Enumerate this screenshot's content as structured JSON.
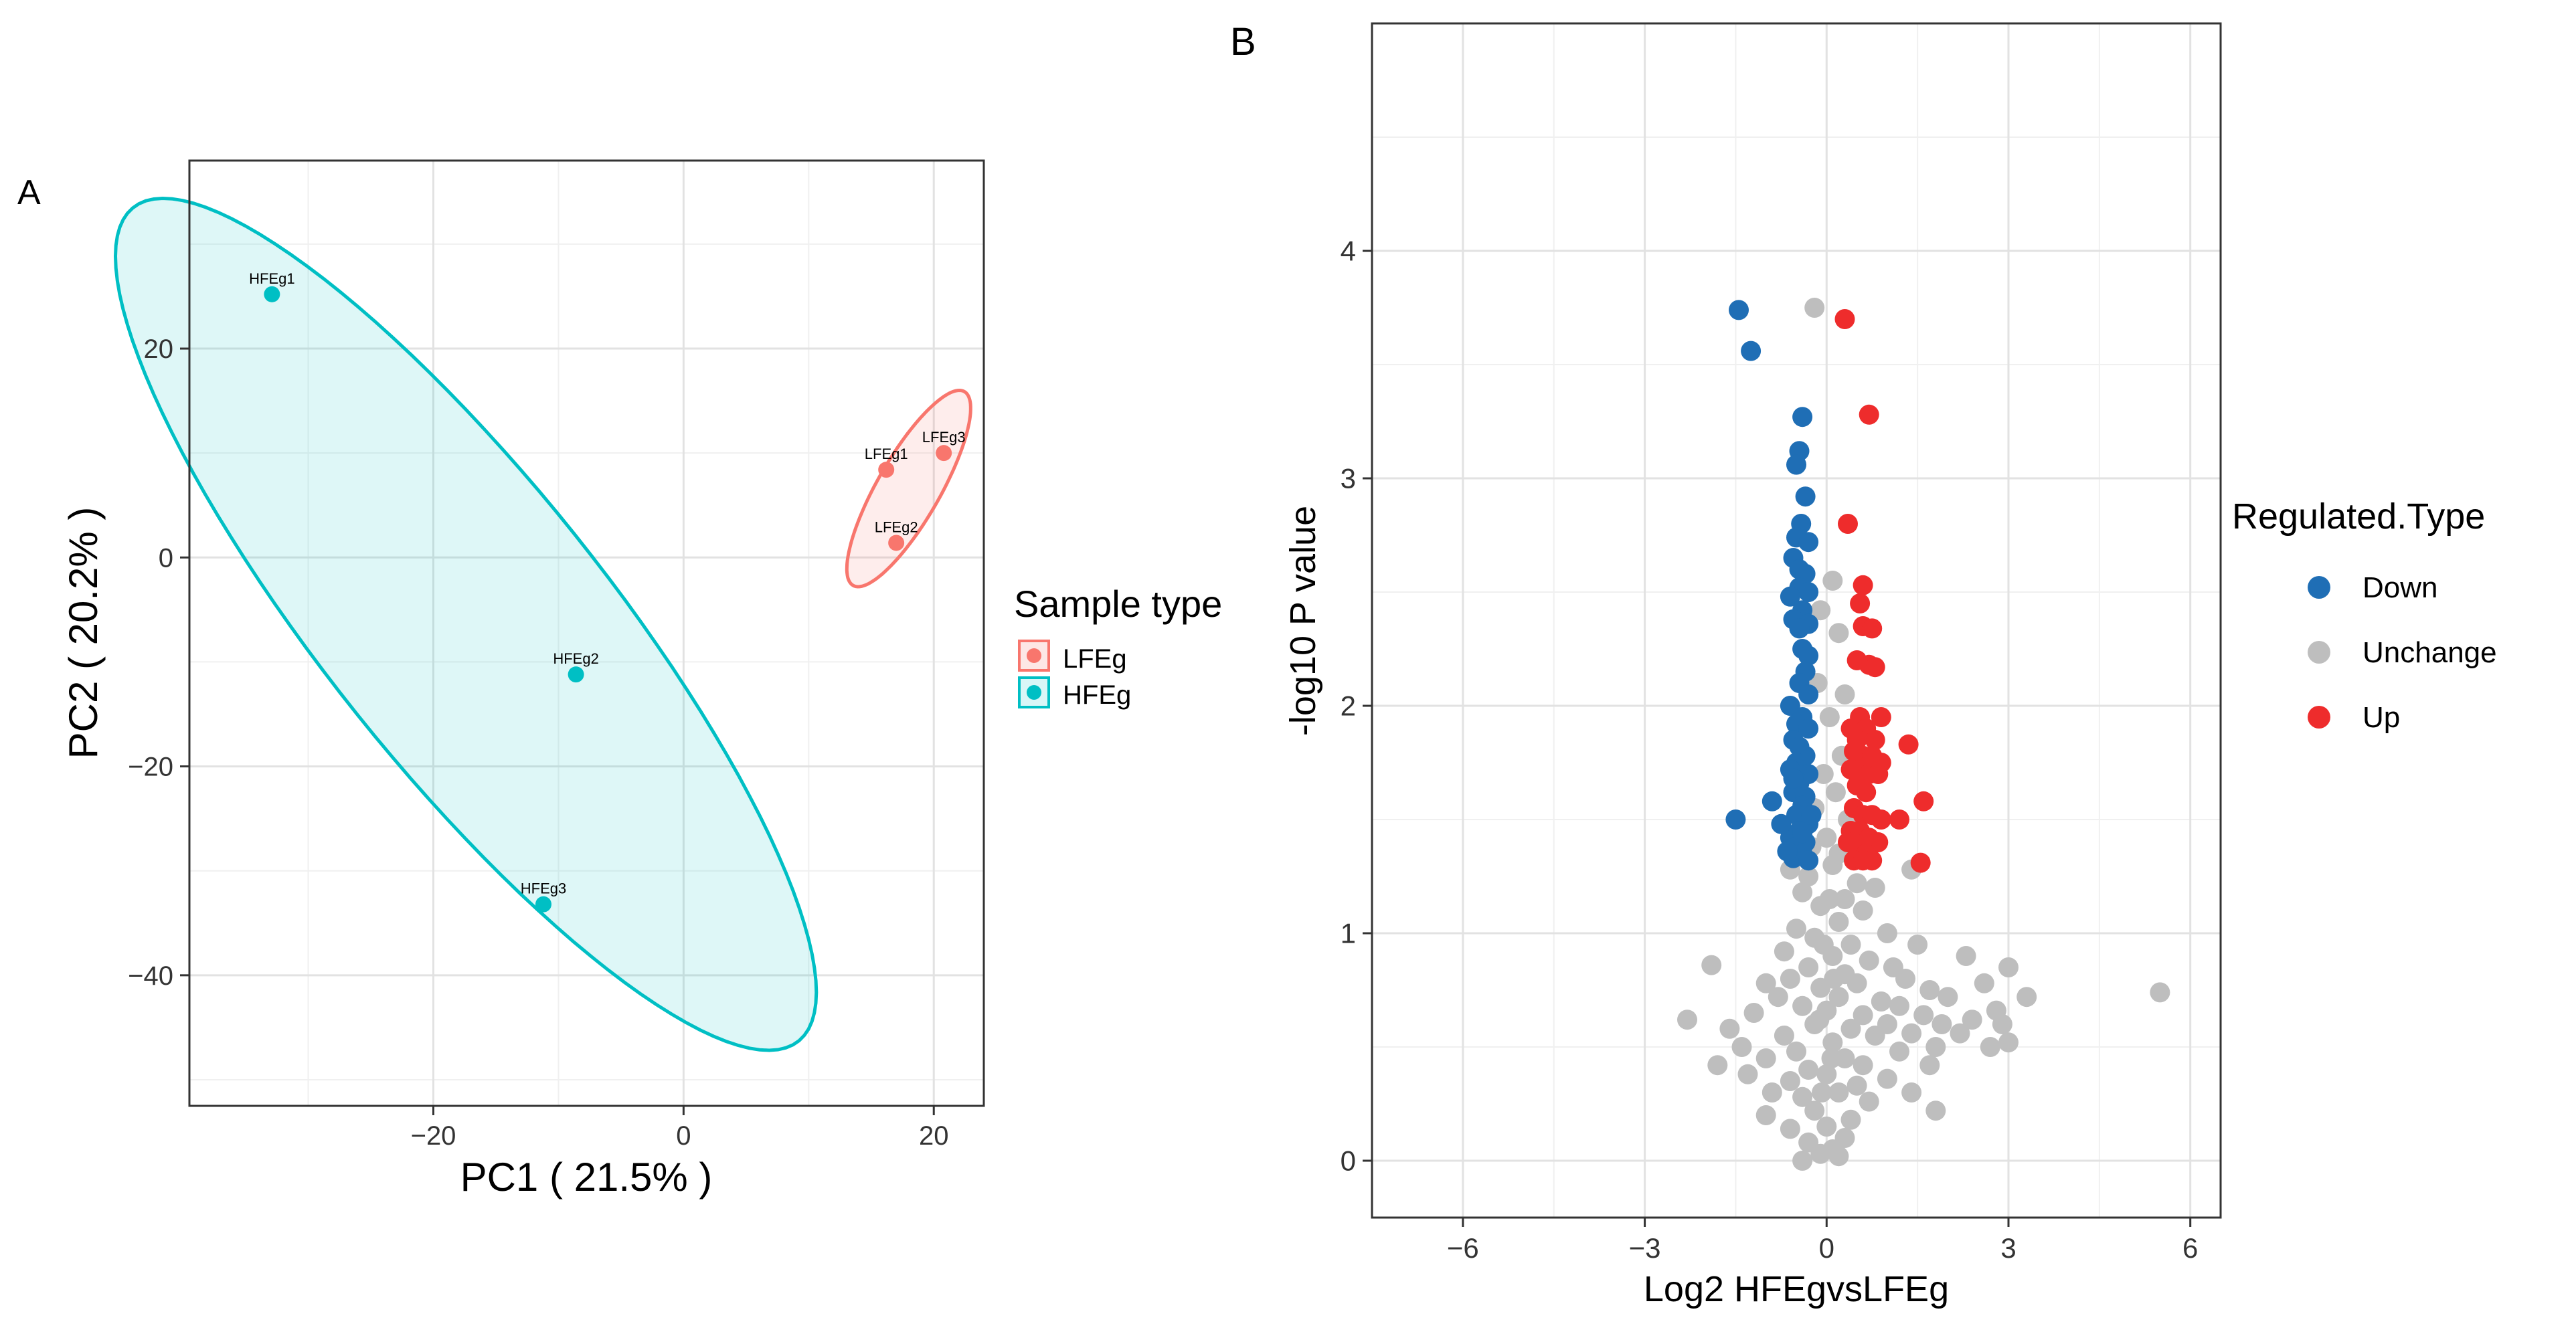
{
  "panel_a": {
    "label": "A",
    "legend": {
      "title": "Sample type",
      "entries": [
        {
          "label": "LFEg",
          "color": "#F8766D"
        },
        {
          "label": "HFEg",
          "color": "#00BFC4"
        }
      ]
    }
  },
  "panel_b": {
    "label": "B",
    "legend": {
      "title": "Regulated.Type",
      "entries": [
        {
          "label": "Down",
          "color": "#1F6EB5"
        },
        {
          "label": "Unchange",
          "color": "#BEBEBE"
        },
        {
          "label": "Up",
          "color": "#EE2C2C"
        }
      ]
    }
  },
  "chart_data": [
    {
      "type": "scatter",
      "title": "",
      "xlabel": "PC1 ( 21.5% )",
      "ylabel": "PC2 ( 20.2% )",
      "xlim": [
        -39.5,
        24
      ],
      "ylim": [
        -52.5,
        38
      ],
      "xticks": [
        -20,
        0,
        20
      ],
      "yticks": [
        -40,
        -20,
        0,
        20
      ],
      "grid": true,
      "series": [
        {
          "name": "LFEg",
          "color": "#F8766D",
          "points": [
            {
              "label": "LFEg1",
              "x": 16.2,
              "y": 8.4
            },
            {
              "label": "LFEg2",
              "x": 17.0,
              "y": 1.4
            },
            {
              "label": "LFEg3",
              "x": 20.8,
              "y": 10.0
            }
          ],
          "ellipse": {
            "cx": 18.0,
            "cy": 6.6,
            "semi_major": 10.3,
            "semi_minor": 2.6,
            "angle_deg": 65
          }
        },
        {
          "name": "HFEg",
          "color": "#00BFC4",
          "points": [
            {
              "label": "HFEg1",
              "x": -32.9,
              "y": 25.2
            },
            {
              "label": "HFEg2",
              "x": -8.6,
              "y": -11.2
            },
            {
              "label": "HFEg3",
              "x": -11.2,
              "y": -33.2
            }
          ],
          "ellipse": {
            "cx": -17.4,
            "cy": -6.4,
            "semi_major": 48.0,
            "semi_minor": 12.0,
            "angle_deg": -57
          }
        }
      ]
    },
    {
      "type": "scatter",
      "title": "",
      "xlabel": "Log2 HFEgvsLFEg",
      "ylabel": "-log10 P value",
      "xlim": [
        -7.5,
        6.5
      ],
      "ylim": [
        -0.25,
        5.0
      ],
      "xticks": [
        -6,
        -3,
        0,
        3,
        6
      ],
      "yticks": [
        0,
        1,
        2,
        3,
        4
      ],
      "grid": true,
      "series": [
        {
          "name": "Down",
          "color": "#1F6EB5",
          "points": [
            [
              -1.45,
              3.74
            ],
            [
              -1.25,
              3.56
            ],
            [
              -0.4,
              3.27
            ],
            [
              -0.45,
              3.12
            ],
            [
              -0.5,
              3.06
            ],
            [
              -0.35,
              2.92
            ],
            [
              -0.42,
              2.8
            ],
            [
              -0.5,
              2.74
            ],
            [
              -0.3,
              2.72
            ],
            [
              -0.55,
              2.65
            ],
            [
              -0.45,
              2.6
            ],
            [
              -0.35,
              2.58
            ],
            [
              -0.45,
              2.52
            ],
            [
              -0.3,
              2.5
            ],
            [
              -0.6,
              2.48
            ],
            [
              -0.4,
              2.42
            ],
            [
              -0.55,
              2.38
            ],
            [
              -0.3,
              2.36
            ],
            [
              -0.45,
              2.34
            ],
            [
              -0.4,
              2.25
            ],
            [
              -0.3,
              2.22
            ],
            [
              -0.35,
              2.15
            ],
            [
              -0.45,
              2.1
            ],
            [
              -0.3,
              2.05
            ],
            [
              -0.6,
              2.0
            ],
            [
              -0.4,
              1.95
            ],
            [
              -0.5,
              1.92
            ],
            [
              -0.3,
              1.9
            ],
            [
              -0.55,
              1.85
            ],
            [
              -0.45,
              1.82
            ],
            [
              -0.35,
              1.78
            ],
            [
              -0.5,
              1.75
            ],
            [
              -0.6,
              1.72
            ],
            [
              -0.3,
              1.7
            ],
            [
              -0.45,
              1.66
            ],
            [
              -0.55,
              1.62
            ],
            [
              -0.35,
              1.6
            ],
            [
              -0.9,
              1.58
            ],
            [
              -0.4,
              1.56
            ],
            [
              -0.5,
              1.52
            ],
            [
              -1.5,
              1.5
            ],
            [
              -0.3,
              1.48
            ],
            [
              -0.45,
              1.45
            ],
            [
              -0.6,
              1.42
            ],
            [
              -0.35,
              1.4
            ],
            [
              -0.5,
              1.38
            ],
            [
              -0.4,
              1.35
            ],
            [
              -0.55,
              1.33
            ],
            [
              -0.3,
              1.32
            ],
            [
              -0.65,
              1.36
            ],
            [
              -0.75,
              1.48
            ],
            [
              -0.4,
              1.44
            ],
            [
              -0.25,
              1.52
            ],
            [
              -0.55,
              1.68
            ]
          ]
        },
        {
          "name": "Up",
          "color": "#EE2C2C",
          "points": [
            [
              0.3,
              3.7
            ],
            [
              0.7,
              3.28
            ],
            [
              0.35,
              2.8
            ],
            [
              0.6,
              2.53
            ],
            [
              0.55,
              2.45
            ],
            [
              0.6,
              2.35
            ],
            [
              0.75,
              2.34
            ],
            [
              0.5,
              2.2
            ],
            [
              0.7,
              2.18
            ],
            [
              0.8,
              2.17
            ],
            [
              0.55,
              1.95
            ],
            [
              0.9,
              1.95
            ],
            [
              0.4,
              1.9
            ],
            [
              0.65,
              1.9
            ],
            [
              0.5,
              1.85
            ],
            [
              0.8,
              1.85
            ],
            [
              1.35,
              1.83
            ],
            [
              0.45,
              1.8
            ],
            [
              0.6,
              1.78
            ],
            [
              0.75,
              1.78
            ],
            [
              0.9,
              1.75
            ],
            [
              0.4,
              1.72
            ],
            [
              0.55,
              1.72
            ],
            [
              0.7,
              1.7
            ],
            [
              0.85,
              1.7
            ],
            [
              0.5,
              1.65
            ],
            [
              0.65,
              1.62
            ],
            [
              1.6,
              1.58
            ],
            [
              0.45,
              1.55
            ],
            [
              0.6,
              1.52
            ],
            [
              0.75,
              1.52
            ],
            [
              0.9,
              1.5
            ],
            [
              1.2,
              1.5
            ],
            [
              0.4,
              1.45
            ],
            [
              0.55,
              1.45
            ],
            [
              0.7,
              1.42
            ],
            [
              0.85,
              1.4
            ],
            [
              0.5,
              1.38
            ],
            [
              0.65,
              1.35
            ],
            [
              0.45,
              1.32
            ],
            [
              0.75,
              1.32
            ],
            [
              1.55,
              1.31
            ],
            [
              0.6,
              1.32
            ],
            [
              0.35,
              1.4
            ]
          ]
        },
        {
          "name": "Unchange",
          "color": "#BEBEBE",
          "points": [
            [
              -0.2,
              3.75
            ],
            [
              0.1,
              2.55
            ],
            [
              0.2,
              2.32
            ],
            [
              -0.1,
              2.42
            ],
            [
              0.3,
              2.05
            ],
            [
              -0.15,
              2.1
            ],
            [
              0.05,
              1.95
            ],
            [
              0.25,
              1.78
            ],
            [
              -0.05,
              1.7
            ],
            [
              0.15,
              1.62
            ],
            [
              -0.2,
              1.55
            ],
            [
              0.35,
              1.5
            ],
            [
              0.0,
              1.42
            ],
            [
              -0.25,
              1.38
            ],
            [
              0.2,
              1.35
            ],
            [
              1.4,
              1.28
            ],
            [
              -0.6,
              1.28
            ],
            [
              0.1,
              1.3
            ],
            [
              -0.3,
              1.25
            ],
            [
              0.5,
              1.22
            ],
            [
              0.8,
              1.2
            ],
            [
              -0.4,
              1.18
            ],
            [
              0.3,
              1.15
            ],
            [
              -0.1,
              1.12
            ],
            [
              0.6,
              1.1
            ],
            [
              0.2,
              1.05
            ],
            [
              -0.5,
              1.02
            ],
            [
              1.0,
              1.0
            ],
            [
              -0.2,
              0.98
            ],
            [
              0.4,
              0.95
            ],
            [
              1.5,
              0.95
            ],
            [
              -0.7,
              0.92
            ],
            [
              0.1,
              0.9
            ],
            [
              0.7,
              0.88
            ],
            [
              -0.3,
              0.85
            ],
            [
              1.1,
              0.85
            ],
            [
              2.3,
              0.9
            ],
            [
              -1.9,
              0.86
            ],
            [
              0.3,
              0.82
            ],
            [
              -0.6,
              0.8
            ],
            [
              1.3,
              0.8
            ],
            [
              3.0,
              0.85
            ],
            [
              -1.0,
              0.78
            ],
            [
              0.5,
              0.78
            ],
            [
              -0.1,
              0.76
            ],
            [
              1.7,
              0.75
            ],
            [
              2.6,
              0.78
            ],
            [
              5.5,
              0.74
            ],
            [
              -0.8,
              0.72
            ],
            [
              0.2,
              0.72
            ],
            [
              0.9,
              0.7
            ],
            [
              2.0,
              0.72
            ],
            [
              3.3,
              0.72
            ],
            [
              -0.4,
              0.68
            ],
            [
              1.2,
              0.68
            ],
            [
              2.8,
              0.66
            ],
            [
              -1.2,
              0.65
            ],
            [
              0.0,
              0.66
            ],
            [
              0.6,
              0.64
            ],
            [
              1.6,
              0.64
            ],
            [
              2.4,
              0.62
            ],
            [
              -2.3,
              0.62
            ],
            [
              -0.2,
              0.6
            ],
            [
              1.0,
              0.6
            ],
            [
              1.9,
              0.6
            ],
            [
              2.9,
              0.6
            ],
            [
              -1.6,
              0.58
            ],
            [
              0.4,
              0.58
            ],
            [
              1.4,
              0.56
            ],
            [
              2.2,
              0.56
            ],
            [
              -0.7,
              0.55
            ],
            [
              0.8,
              0.55
            ],
            [
              3.0,
              0.52
            ],
            [
              -1.4,
              0.5
            ],
            [
              0.1,
              0.52
            ],
            [
              1.8,
              0.5
            ],
            [
              2.7,
              0.5
            ],
            [
              -0.5,
              0.48
            ],
            [
              1.2,
              0.48
            ],
            [
              -1.0,
              0.45
            ],
            [
              0.3,
              0.45
            ],
            [
              -1.8,
              0.42
            ],
            [
              0.6,
              0.42
            ],
            [
              1.7,
              0.42
            ],
            [
              -0.3,
              0.4
            ],
            [
              -1.3,
              0.38
            ],
            [
              0.0,
              0.38
            ],
            [
              1.0,
              0.36
            ],
            [
              -0.6,
              0.35
            ],
            [
              0.5,
              0.33
            ],
            [
              -0.9,
              0.3
            ],
            [
              0.2,
              0.3
            ],
            [
              1.4,
              0.3
            ],
            [
              -0.4,
              0.28
            ],
            [
              0.7,
              0.26
            ],
            [
              1.8,
              0.22
            ],
            [
              -0.2,
              0.22
            ],
            [
              -1.0,
              0.2
            ],
            [
              0.4,
              0.18
            ],
            [
              0.0,
              0.15
            ],
            [
              -0.6,
              0.14
            ],
            [
              0.3,
              0.1
            ],
            [
              -0.3,
              0.08
            ],
            [
              0.1,
              0.05
            ],
            [
              -0.1,
              0.03
            ],
            [
              0.2,
              0.02
            ],
            [
              -0.4,
              0.0
            ],
            [
              0.05,
              1.15
            ],
            [
              -0.05,
              0.95
            ],
            [
              0.12,
              0.8
            ],
            [
              -0.12,
              0.62
            ],
            [
              0.08,
              0.45
            ],
            [
              -0.08,
              0.3
            ]
          ]
        }
      ]
    }
  ]
}
